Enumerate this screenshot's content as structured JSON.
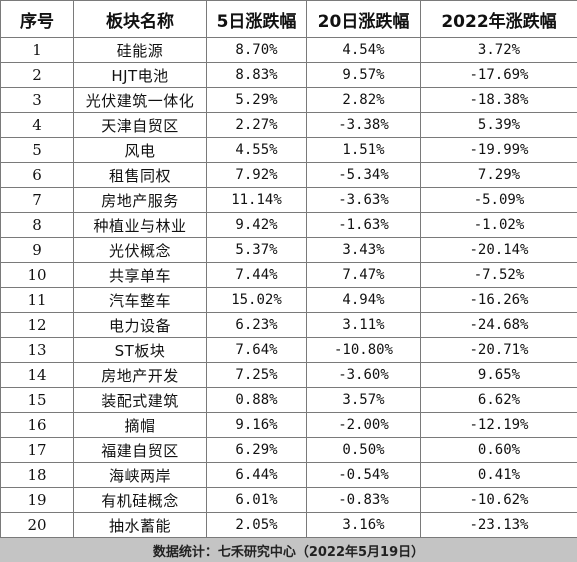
{
  "table": {
    "headers": [
      "序号",
      "板块名称",
      "5日涨跌幅",
      "20日涨跌幅",
      "2022年涨跌幅"
    ],
    "rows": [
      [
        "1",
        "硅能源",
        "8.70%",
        "4.54%",
        "3.72%"
      ],
      [
        "2",
        "HJT电池",
        "8.83%",
        "9.57%",
        "-17.69%"
      ],
      [
        "3",
        "光伏建筑一体化",
        "5.29%",
        "2.82%",
        "-18.38%"
      ],
      [
        "4",
        "天津自贸区",
        "2.27%",
        "-3.38%",
        "5.39%"
      ],
      [
        "5",
        "风电",
        "4.55%",
        "1.51%",
        "-19.99%"
      ],
      [
        "6",
        "租售同权",
        "7.92%",
        "-5.34%",
        "7.29%"
      ],
      [
        "7",
        "房地产服务",
        "11.14%",
        "-3.63%",
        "-5.09%"
      ],
      [
        "8",
        "种植业与林业",
        "9.42%",
        "-1.63%",
        "-1.02%"
      ],
      [
        "9",
        "光伏概念",
        "5.37%",
        "3.43%",
        "-20.14%"
      ],
      [
        "10",
        "共享单车",
        "7.44%",
        "7.47%",
        "-7.52%"
      ],
      [
        "11",
        "汽车整车",
        "15.02%",
        "4.94%",
        "-16.26%"
      ],
      [
        "12",
        "电力设备",
        "6.23%",
        "3.11%",
        "-24.68%"
      ],
      [
        "13",
        "ST板块",
        "7.64%",
        "-10.80%",
        "-20.71%"
      ],
      [
        "14",
        "房地产开发",
        "7.25%",
        "-3.60%",
        "9.65%"
      ],
      [
        "15",
        "装配式建筑",
        "0.88%",
        "3.57%",
        "6.62%"
      ],
      [
        "16",
        "摘帽",
        "9.16%",
        "-2.00%",
        "-12.19%"
      ],
      [
        "17",
        "福建自贸区",
        "6.29%",
        "0.50%",
        "0.60%"
      ],
      [
        "18",
        "海峡两岸",
        "6.44%",
        "-0.54%",
        "0.41%"
      ],
      [
        "19",
        "有机硅概念",
        "6.01%",
        "-0.83%",
        "-10.62%"
      ],
      [
        "20",
        "抽水蓄能",
        "2.05%",
        "3.16%",
        "-23.13%"
      ]
    ]
  },
  "footer": {
    "source_text": "数据统计：七禾研究中心（2022年5月19日）"
  },
  "colors": {
    "footer_bg": "#c4c4c4",
    "border": "#7a7a7a"
  }
}
